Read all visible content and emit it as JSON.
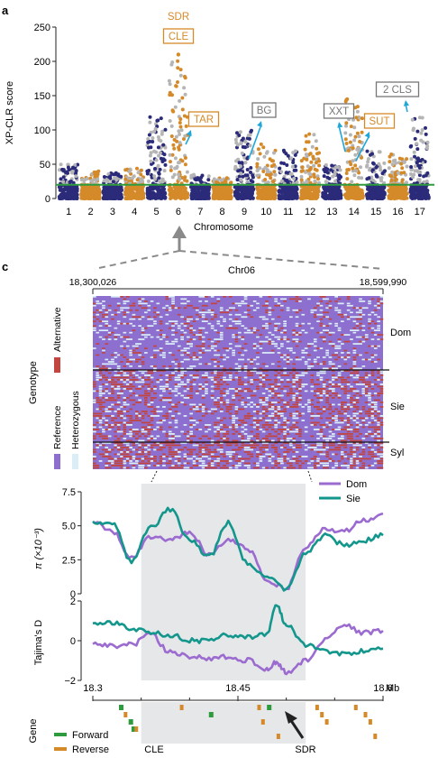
{
  "panel_labels": {
    "a": "a",
    "c": "c"
  },
  "colors": {
    "orange": "#d58a2a",
    "navy": "#2b2b7a",
    "grey": "#b5b5b5",
    "green": "#2e9b3f",
    "cyan": "#1fa7d8",
    "purple": "#9b6bd0",
    "teal": "#13968c",
    "red": "#c2463f",
    "lavender": "#8c6fcf",
    "lightblue": "#dbeef7",
    "shade": "#e6e7e9"
  },
  "chart_data": [
    {
      "type": "scatter",
      "panel": "a",
      "ylabel": "XP-CLR score",
      "xlabel": "Chromosome",
      "ylim": [
        0,
        250
      ],
      "yticks": [
        0,
        50,
        100,
        150,
        200,
        250
      ],
      "categories": [
        "1",
        "2",
        "3",
        "4",
        "5",
        "6",
        "7",
        "8",
        "9",
        "10",
        "11",
        "12",
        "13",
        "14",
        "15",
        "16",
        "17"
      ],
      "threshold": 20,
      "max_by_chromosome": [
        50,
        40,
        40,
        45,
        120,
        210,
        35,
        30,
        100,
        80,
        70,
        95,
        50,
        145,
        70,
        65,
        120
      ],
      "peak_point": {
        "chromosome": "6",
        "value": 210
      },
      "annotations": [
        {
          "text": "SDR",
          "boxed": false,
          "color": "orange",
          "chromosome": "6"
        },
        {
          "text": "CLE",
          "boxed": true,
          "color": "orange",
          "chromosome": "6"
        },
        {
          "text": "TAR",
          "boxed": true,
          "color": "orange",
          "chromosome": "6"
        },
        {
          "text": "BG",
          "boxed": true,
          "color": "grey",
          "chromosome": "10"
        },
        {
          "text": "XXT",
          "boxed": true,
          "color": "grey",
          "chromosome": "14"
        },
        {
          "text": "SUT",
          "boxed": true,
          "color": "orange",
          "chromosome": "15"
        },
        {
          "text": "2 CLS",
          "boxed": true,
          "color": "grey",
          "chromosome": "17"
        }
      ]
    },
    {
      "type": "heatmap",
      "panel": "c",
      "chromosome_label": "Chr06",
      "start_label": "18,300,026",
      "end_label": "18,599,990",
      "ylabel": "Genotype",
      "groups": [
        "Dom",
        "Sie",
        "Syl"
      ],
      "legend": [
        "Alternative",
        "Reference",
        "Heterozygous"
      ]
    },
    {
      "type": "line",
      "ylabel": "π (×10⁻³)",
      "ylim": [
        0,
        7.5
      ],
      "yticks": [
        "0",
        "2.5",
        "5.0",
        "7.5"
      ],
      "legend": [
        "Dom",
        "Sie"
      ],
      "x": [
        18.3,
        18.32,
        18.34,
        18.36,
        18.38,
        18.4,
        18.42,
        18.44,
        18.46,
        18.48,
        18.5,
        18.52,
        18.54,
        18.56,
        18.58,
        18.6
      ],
      "series": [
        {
          "name": "Dom",
          "color": "purple",
          "values": [
            5.2,
            4.6,
            2.6,
            4.2,
            3.9,
            4.6,
            2.9,
            4.0,
            3.3,
            1.0,
            0.4,
            3.4,
            4.8,
            4.6,
            5.4,
            5.9
          ]
        },
        {
          "name": "Sie",
          "color": "teal",
          "values": [
            5.3,
            5.2,
            2.4,
            4.9,
            6.2,
            4.0,
            2.7,
            5.2,
            2.2,
            1.2,
            0.3,
            3.0,
            4.3,
            3.6,
            3.9,
            4.3
          ]
        }
      ],
      "shade_range": [
        18.35,
        18.52
      ]
    },
    {
      "type": "line",
      "ylabel": "Tajima's D",
      "ylim": [
        -2,
        2
      ],
      "yticks": [
        "−2",
        "0",
        "2"
      ],
      "x": [
        18.3,
        18.32,
        18.34,
        18.36,
        18.38,
        18.4,
        18.42,
        18.44,
        18.46,
        18.48,
        18.49,
        18.5,
        18.52,
        18.54,
        18.56,
        18.58,
        18.6
      ],
      "series": [
        {
          "name": "Dom",
          "color": "purple",
          "values": [
            -0.1,
            -0.3,
            -0.2,
            0.3,
            -0.6,
            -0.8,
            -0.9,
            -0.8,
            -1.0,
            -1.4,
            -1.1,
            -1.6,
            -1.0,
            0.0,
            0.8,
            0.4,
            0.5
          ]
        },
        {
          "name": "Sie",
          "color": "teal",
          "values": [
            0.9,
            0.9,
            0.6,
            0.4,
            0.3,
            0.0,
            0.0,
            0.3,
            0.2,
            0.3,
            1.8,
            0.8,
            -0.2,
            -0.5,
            -0.7,
            -0.5,
            -0.4
          ]
        }
      ],
      "shade_range": [
        18.35,
        18.52
      ]
    },
    {
      "type": "bar",
      "panel": "genes",
      "label": "Gene",
      "xlabel": "Mb",
      "xticks": [
        "18.3",
        "18.45",
        "18.6"
      ],
      "legend": [
        {
          "label": "Forward",
          "color": "green"
        },
        {
          "label": "Reverse",
          "color": "orange"
        }
      ],
      "callouts": [
        "CLE",
        "SDR"
      ]
    }
  ]
}
